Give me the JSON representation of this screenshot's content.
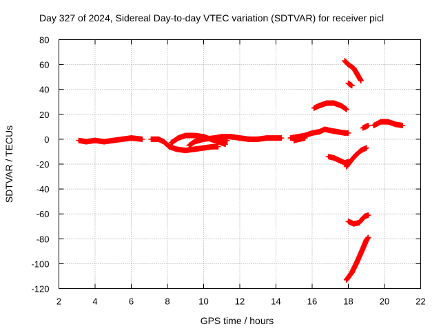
{
  "chart_data": {
    "type": "scatter",
    "title": "Day 327 of 2024, Sidereal Day-to-day VTEC variation (SDTVAR) for receiver picl",
    "xlabel": "GPS time / hours",
    "ylabel": "SDTVAR / TECUs",
    "xlim": [
      2,
      22
    ],
    "ylim": [
      -120,
      80
    ],
    "xticks": [
      "2",
      "4",
      "6",
      "8",
      "10",
      "12",
      "14",
      "16",
      "18",
      "20",
      "22"
    ],
    "yticks": [
      "80",
      "60",
      "40",
      "20",
      "0",
      "-20",
      "-40",
      "-60",
      "-80",
      "-100",
      "-120"
    ],
    "grid": true,
    "marker": "plus",
    "series_color": "#ff0000",
    "series": [
      {
        "segments": [
          [
            [
              3.1,
              -1
            ],
            [
              3.5,
              -2
            ],
            [
              4.0,
              -1
            ],
            [
              4.5,
              -2
            ],
            [
              5.0,
              -1
            ],
            [
              5.5,
              0
            ],
            [
              6.0,
              1
            ],
            [
              6.6,
              0
            ]
          ],
          [
            [
              7.1,
              0
            ],
            [
              7.5,
              0
            ],
            [
              7.8,
              -2
            ],
            [
              8.1,
              -6
            ],
            [
              8.5,
              -8
            ],
            [
              9.0,
              -9
            ],
            [
              9.5,
              -8
            ],
            [
              10.0,
              -7
            ],
            [
              10.5,
              -6
            ],
            [
              10.8,
              -6
            ]
          ],
          [
            [
              8.2,
              -3
            ],
            [
              8.6,
              1
            ],
            [
              9.0,
              3
            ],
            [
              9.5,
              3
            ],
            [
              10.0,
              2
            ],
            [
              10.4,
              0
            ],
            [
              10.8,
              -2
            ],
            [
              11.2,
              -4
            ]
          ],
          [
            [
              9.2,
              -5
            ],
            [
              9.5,
              -2
            ],
            [
              10.0,
              0
            ],
            [
              10.6,
              1
            ],
            [
              11.0,
              2
            ],
            [
              11.5,
              2
            ],
            [
              12.0,
              1
            ],
            [
              12.5,
              0
            ],
            [
              13.0,
              0
            ],
            [
              13.5,
              1
            ],
            [
              14.0,
              1
            ],
            [
              14.3,
              1
            ]
          ],
          [
            [
              10.7,
              0
            ],
            [
              11.0,
              -2
            ],
            [
              11.3,
              -1
            ]
          ],
          [
            [
              14.8,
              1
            ],
            [
              15.2,
              2
            ],
            [
              15.6,
              3
            ],
            [
              16.0,
              5
            ],
            [
              16.4,
              6
            ],
            [
              16.7,
              8
            ],
            [
              17.0,
              7
            ],
            [
              17.4,
              6
            ],
            [
              17.8,
              5
            ],
            [
              18.0,
              5
            ]
          ],
          [
            [
              15.0,
              -1
            ],
            [
              15.3,
              0
            ],
            [
              15.6,
              1
            ]
          ],
          [
            [
              16.1,
              25
            ],
            [
              16.4,
              27
            ],
            [
              16.8,
              29
            ],
            [
              17.2,
              29
            ],
            [
              17.6,
              27
            ],
            [
              17.9,
              24
            ]
          ],
          [
            [
              17.8,
              63
            ],
            [
              18.0,
              60
            ],
            [
              18.3,
              57
            ],
            [
              18.5,
              52
            ],
            [
              18.7,
              47
            ]
          ],
          [
            [
              18.0,
              45
            ],
            [
              18.2,
              43
            ]
          ],
          [
            [
              16.9,
              -14
            ],
            [
              17.2,
              -15
            ],
            [
              17.5,
              -17
            ],
            [
              17.8,
              -19
            ],
            [
              18.0,
              -18
            ]
          ],
          [
            [
              17.9,
              -22
            ],
            [
              18.1,
              -18
            ],
            [
              18.4,
              -13
            ],
            [
              18.7,
              -9
            ],
            [
              19.0,
              -7
            ]
          ],
          [
            [
              18.0,
              -66
            ],
            [
              18.3,
              -68
            ],
            [
              18.6,
              -67
            ],
            [
              18.9,
              -62
            ],
            [
              19.1,
              -61
            ]
          ],
          [
            [
              17.9,
              -113
            ],
            [
              18.2,
              -107
            ],
            [
              18.5,
              -98
            ],
            [
              18.8,
              -88
            ],
            [
              19.0,
              -81
            ],
            [
              19.1,
              -79
            ]
          ],
          [
            [
              18.8,
              9
            ],
            [
              19.1,
              11
            ]
          ],
          [
            [
              19.4,
              11
            ],
            [
              19.8,
              14
            ],
            [
              20.2,
              14
            ],
            [
              20.6,
              12
            ],
            [
              21.0,
              11
            ]
          ]
        ]
      }
    ]
  }
}
